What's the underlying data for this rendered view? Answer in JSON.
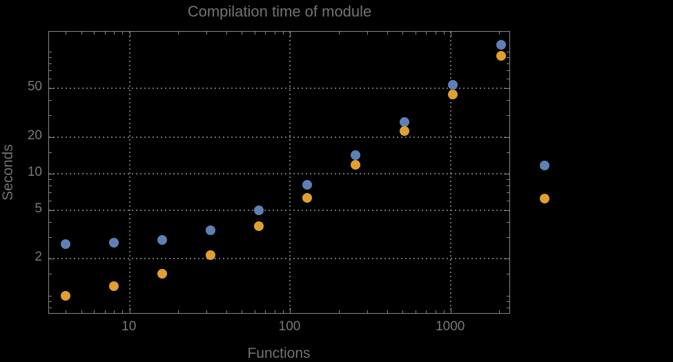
{
  "title": "Compilation time of module",
  "colors": {
    "background": "#000000",
    "frame": "#878787",
    "grid": "#707070",
    "text": "#7a7a7a",
    "series1": "#5e81b5",
    "series2": "#e0a030"
  },
  "chart_data": {
    "type": "scatter",
    "title": "Compilation time of module",
    "xlabel": "Functions",
    "ylabel": "Seconds",
    "x_scale": "log",
    "y_scale": "log",
    "xlim": [
      3.15,
      2360
    ],
    "ylim": [
      0.7,
      146
    ],
    "grid": true,
    "x_major_ticks": [
      10,
      100,
      1000
    ],
    "x_major_tick_labels": [
      "10",
      "100",
      "1000"
    ],
    "x_minor_ticks": [
      4,
      5,
      6,
      7,
      8,
      9,
      20,
      30,
      40,
      50,
      60,
      70,
      80,
      90,
      200,
      300,
      400,
      500,
      600,
      700,
      800,
      900,
      2000
    ],
    "y_major_ticks": [
      2,
      5,
      10,
      20,
      50
    ],
    "y_major_tick_labels": [
      "2",
      "5",
      "10",
      "20",
      "50"
    ],
    "y_minor_ticks": [
      0.8,
      0.9,
      1,
      1.5,
      3,
      4,
      6,
      7,
      8,
      9,
      15,
      30,
      40,
      60,
      70,
      80,
      90,
      100,
      150
    ],
    "x": [
      4,
      8,
      16,
      32,
      64,
      128,
      256,
      512,
      1024,
      2048
    ],
    "series": [
      {
        "name": "",
        "color": "#5e81b5",
        "values": [
          2.65,
          2.7,
          2.85,
          3.45,
          5.0,
          8.1,
          14.2,
          26.5,
          53.5,
          114
        ]
      },
      {
        "name": "",
        "color": "#e0a030",
        "values": [
          1.0,
          1.2,
          1.5,
          2.15,
          3.7,
          6.3,
          11.8,
          22.4,
          44.5,
          92.5
        ]
      }
    ],
    "legend_position": "right-outside"
  }
}
